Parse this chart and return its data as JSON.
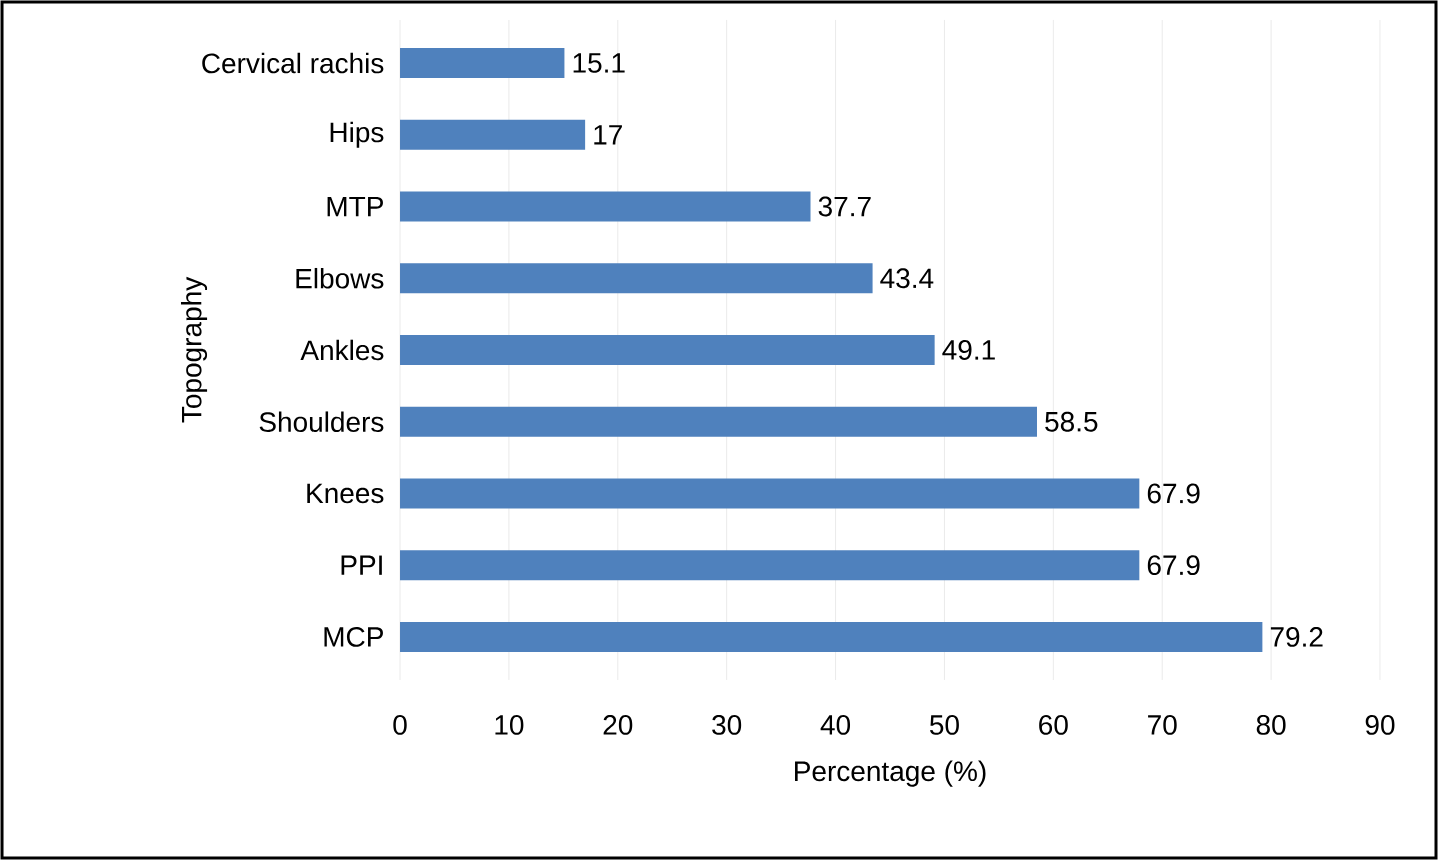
{
  "chart_data": {
    "type": "bar",
    "orientation": "horizontal",
    "xlabel": "Percentage (%)",
    "ylabel": "Topography",
    "categories": [
      "Cervical rachis",
      "Hips",
      "MTP",
      "Elbows",
      "Ankles",
      "Shoulders",
      "Knees",
      "PPI",
      "MCP"
    ],
    "values": [
      15.1,
      17,
      37.7,
      43.4,
      49.1,
      58.5,
      67.9,
      67.9,
      79.2
    ],
    "color": "#4f81bd",
    "data_labels": true,
    "grid": "x",
    "xlim": [
      0,
      90
    ],
    "xticks": [
      0,
      10,
      20,
      30,
      40,
      50,
      60,
      70,
      80,
      90
    ]
  }
}
